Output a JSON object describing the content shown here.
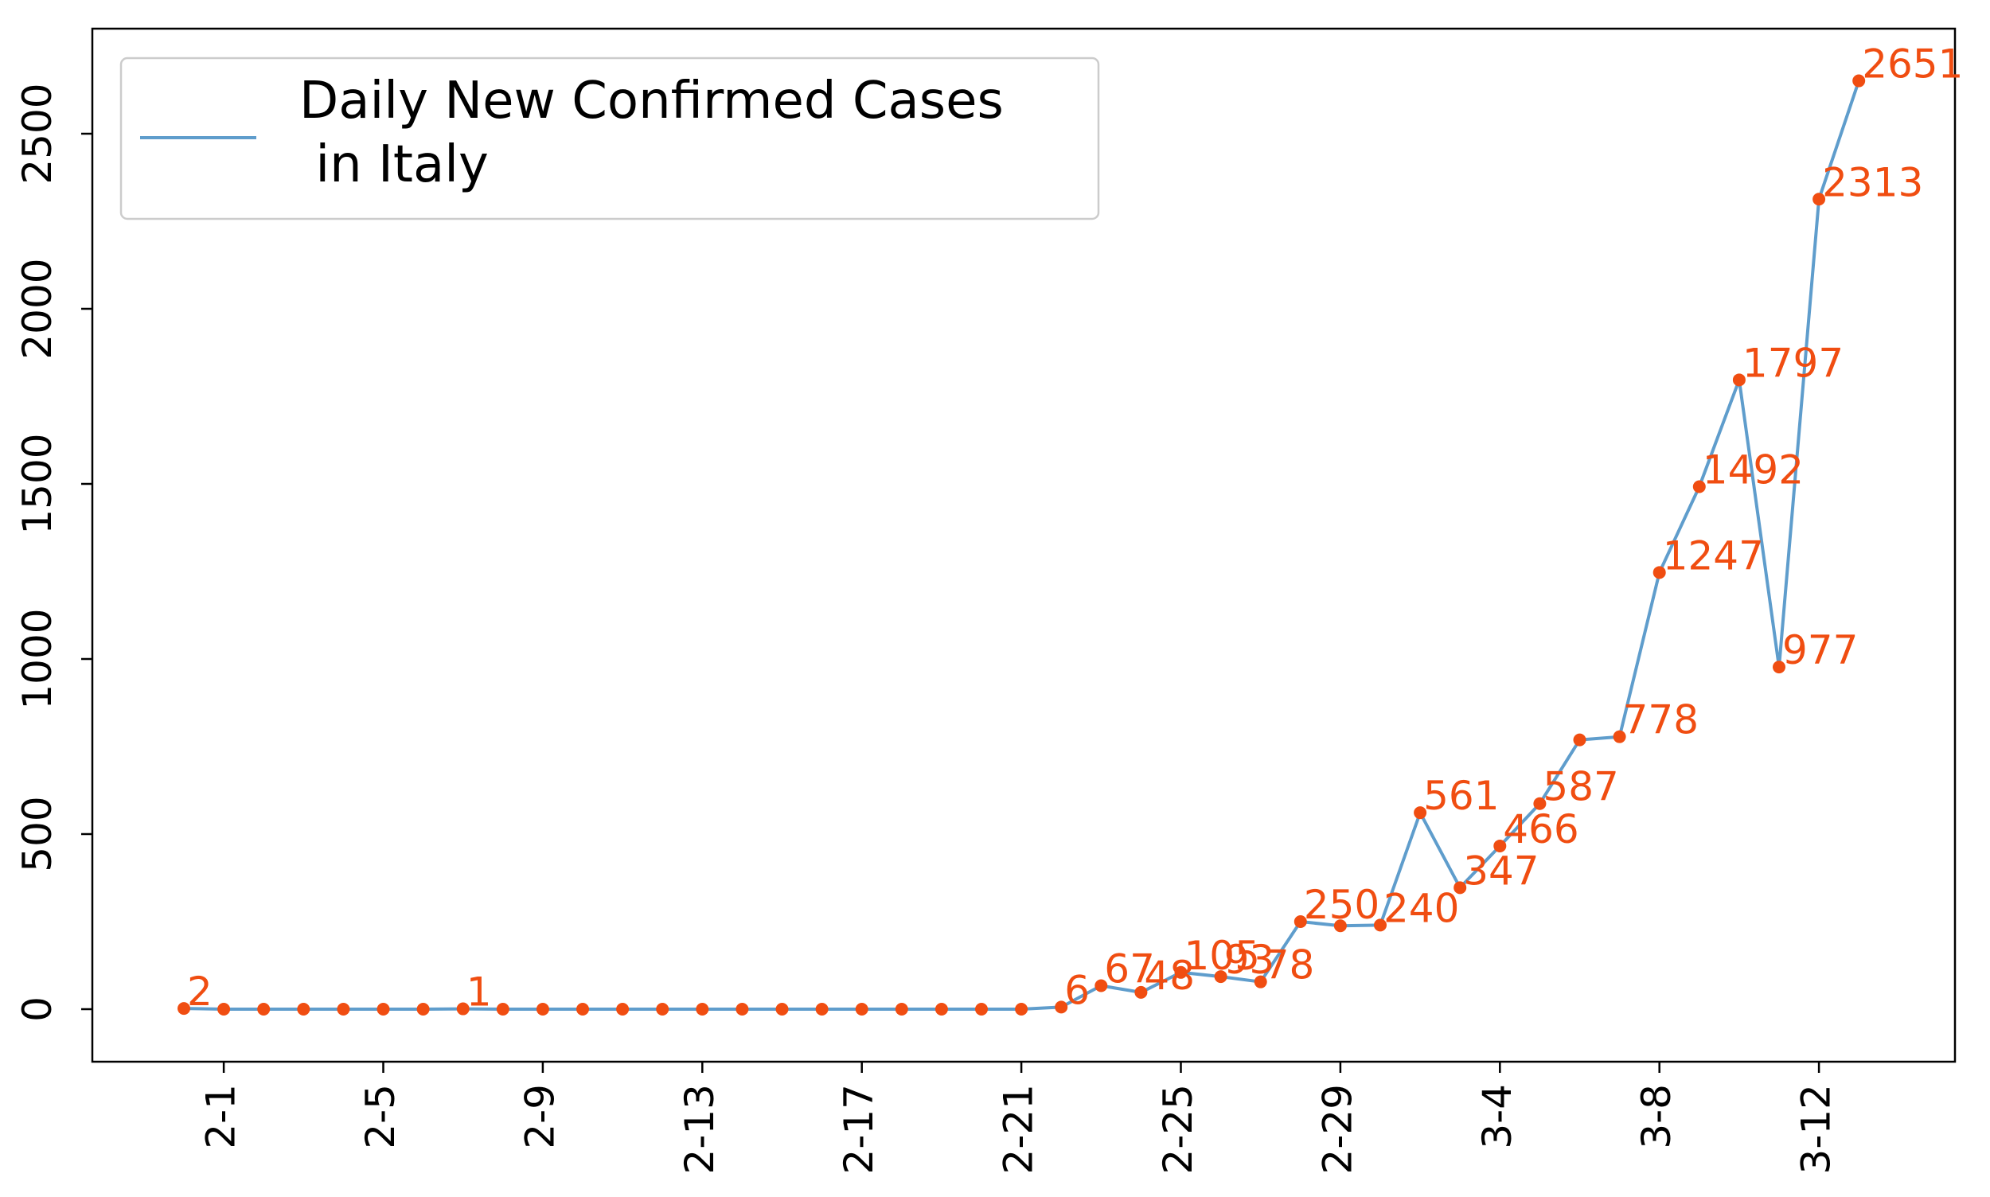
{
  "chart_data": {
    "type": "line",
    "title": "",
    "xlabel": "",
    "ylabel": "",
    "x": [
      "1-31",
      "2-1",
      "2-2",
      "2-3",
      "2-4",
      "2-5",
      "2-6",
      "2-7",
      "2-8",
      "2-9",
      "2-10",
      "2-11",
      "2-12",
      "2-13",
      "2-14",
      "2-15",
      "2-16",
      "2-17",
      "2-18",
      "2-19",
      "2-20",
      "2-21",
      "2-22",
      "2-23",
      "2-24",
      "2-25",
      "2-26",
      "2-27",
      "2-28",
      "2-29",
      "3-1",
      "3-2",
      "3-3",
      "3-4",
      "3-5",
      "3-6",
      "3-7",
      "3-8",
      "3-9",
      "3-10",
      "3-11",
      "3-12",
      "3-13"
    ],
    "xticks": [
      "2-1",
      "2-5",
      "2-9",
      "2-13",
      "2-17",
      "2-21",
      "2-25",
      "2-29",
      "3-4",
      "3-8",
      "3-12"
    ],
    "series": [
      {
        "name": "Daily New Confirmed Cases\n in Italy",
        "values": [
          2,
          0,
          0,
          0,
          0,
          0,
          0,
          1,
          0,
          0,
          0,
          0,
          0,
          0,
          0,
          0,
          0,
          0,
          0,
          0,
          0,
          0,
          6,
          67,
          48,
          105,
          93,
          78,
          250,
          238,
          240,
          561,
          347,
          466,
          587,
          769,
          778,
          1247,
          1492,
          1797,
          977,
          2313,
          2651
        ],
        "labels": [
          "2",
          "",
          "",
          "",
          "",
          "",
          "",
          "1",
          "",
          "",
          "",
          "",
          "",
          "",
          "",
          "",
          "",
          "",
          "",
          "",
          "",
          "",
          "6",
          "67",
          "48",
          "105",
          "93",
          "78",
          "250",
          "",
          "240",
          "561",
          "347",
          "466",
          "587",
          "",
          "778",
          "1247",
          "1492",
          "1797",
          "977",
          "2313",
          "2651"
        ]
      }
    ],
    "ylim": [
      -150,
      2800
    ],
    "yticks": [
      "0",
      "500",
      "1000",
      "1500",
      "2000",
      "2500"
    ],
    "legend": "top-left",
    "grid": false,
    "colors": {
      "line": "#5f9dcc",
      "marker": "#f04d11",
      "label": "#f04d11",
      "axis": "#000000",
      "legend_border": "#cccccc"
    }
  }
}
